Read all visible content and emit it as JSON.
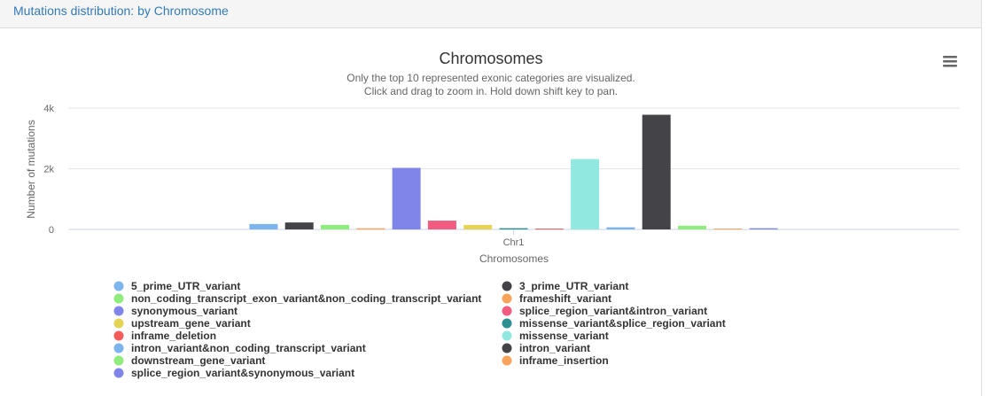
{
  "header": {
    "title": "Mutations distribution: by Chromosome"
  },
  "chart_data": {
    "type": "bar",
    "title": "Chromosomes",
    "subtitle": [
      "Only the top 10 represented exonic categories are visualized.",
      "Click and drag to zoom in. Hold down shift key to pan."
    ],
    "xlabel": "Chromosomes",
    "ylabel": "Number of mutations",
    "ylim": [
      0,
      4000
    ],
    "yticks": [
      0,
      2000,
      4000
    ],
    "ytick_labels": [
      "0",
      "2k",
      "4k"
    ],
    "categories": [
      "Chr1"
    ],
    "grid": true,
    "legend_position": "bottom",
    "series": [
      {
        "name": "5_prime_UTR_variant",
        "color": "#7cb5ec",
        "values": [
          180
        ]
      },
      {
        "name": "3_prime_UTR_variant",
        "color": "#434348",
        "values": [
          230
        ]
      },
      {
        "name": "non_coding_transcript_exon_variant&non_coding_transcript_variant",
        "color": "#90ed7d",
        "values": [
          150
        ]
      },
      {
        "name": "frameshift_variant",
        "color": "#f7a35c",
        "values": [
          40
        ]
      },
      {
        "name": "synonymous_variant",
        "color": "#8085e9",
        "values": [
          2030
        ]
      },
      {
        "name": "splice_region_variant&intron_variant",
        "color": "#f15c80",
        "values": [
          290
        ]
      },
      {
        "name": "upstream_gene_variant",
        "color": "#e4d354",
        "values": [
          150
        ]
      },
      {
        "name": "missense_variant&splice_region_variant",
        "color": "#2b908f",
        "values": [
          40
        ]
      },
      {
        "name": "inframe_deletion",
        "color": "#f45b5b",
        "values": [
          5
        ]
      },
      {
        "name": "missense_variant",
        "color": "#91e8e1",
        "values": [
          2320
        ]
      },
      {
        "name": "intron_variant&non_coding_transcript_variant",
        "color": "#7cb5ec",
        "values": [
          70
        ]
      },
      {
        "name": "intron_variant",
        "color": "#434348",
        "values": [
          3780
        ]
      },
      {
        "name": "downstream_gene_variant",
        "color": "#90ed7d",
        "values": [
          120
        ]
      },
      {
        "name": "inframe_insertion",
        "color": "#f7a35c",
        "values": [
          5
        ]
      },
      {
        "name": "splice_region_variant&synonymous_variant",
        "color": "#8085e9",
        "values": [
          40
        ]
      }
    ]
  },
  "menu": {
    "icon": "hamburger-menu-icon"
  }
}
